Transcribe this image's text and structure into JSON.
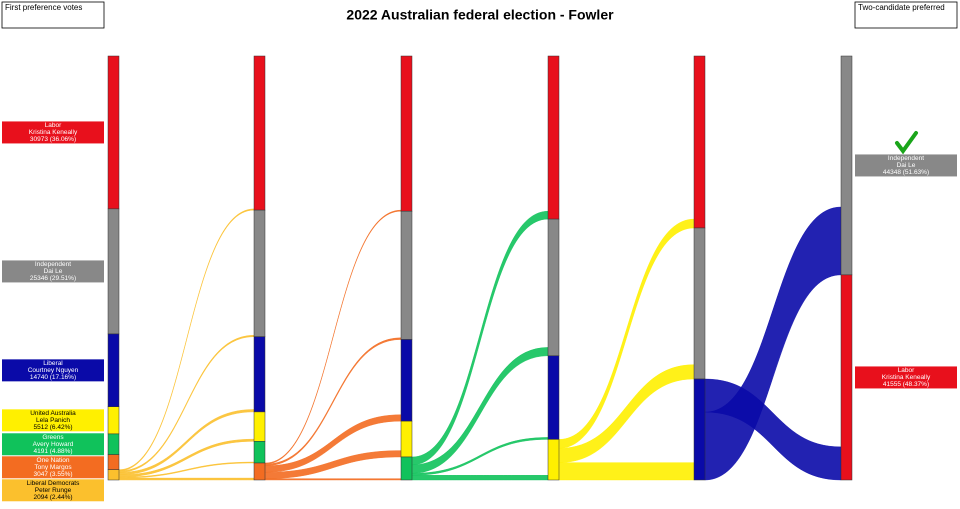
{
  "chart_data": {
    "type": "sankey",
    "title": "2022 Australian federal election - Fowler",
    "left_heading": "First preference votes",
    "right_heading": "Two-candidate preferred",
    "candidates": [
      {
        "party": "Labor",
        "name": "Kristina Keneally",
        "color": "#e8101c",
        "value": 30973,
        "value_label": "30973 (36.06%)"
      },
      {
        "party": "Independent",
        "name": "Dai Le",
        "color": "#888888",
        "value": 25346,
        "value_label": "25346 (29.51%)"
      },
      {
        "party": "Liberal",
        "name": "Courtney Nguyen",
        "color": "#0a0aa8",
        "value": 14740,
        "value_label": "14740 (17.16%)"
      },
      {
        "party": "United Australia",
        "name": "Lela Panich",
        "color": "#fff000",
        "value": 5512,
        "value_label": "5512 (6.42%)"
      },
      {
        "party": "Greens",
        "name": "Avery Howard",
        "color": "#10c25b",
        "value": 4191,
        "value_label": "4191 (4.88%)"
      },
      {
        "party": "One Nation",
        "name": "Tony Margos",
        "color": "#f36c21",
        "value": 3047,
        "value_label": "3047 (3.55%)"
      },
      {
        "party": "Liberal Democrats",
        "name": "Peter Runge",
        "color": "#fbc02d",
        "value": 2094,
        "value_label": "2094 (2.44%)"
      }
    ],
    "counts": [
      [
        31223,
        25646,
        15240,
        5962,
        4391,
        3441,
        null
      ],
      [
        31443,
        25996,
        16540,
        7262,
        4662,
        null,
        null
      ],
      [
        33043,
        27696,
        16940,
        8224,
        null,
        null,
        null
      ],
      [
        34843,
        30596,
        20464,
        null,
        null,
        null,
        null
      ]
    ],
    "transfers": [
      [
        250,
        300,
        500,
        450,
        200,
        394,
        null
      ],
      [
        220,
        350,
        1300,
        1300,
        271,
        null,
        null
      ],
      [
        1600,
        1700,
        400,
        962,
        null,
        null,
        null
      ],
      [
        1800,
        2900,
        3524,
        null,
        null,
        null,
        null
      ],
      [
        6712,
        13752,
        null,
        null,
        null,
        null,
        null
      ]
    ],
    "final": [
      {
        "party": "Independent",
        "name": "Dai Le",
        "color": "#888888",
        "value": 44348,
        "value_label": "44348 (51.63%)"
      },
      {
        "party": "Labor",
        "name": "Kristina Keneally",
        "color": "#e8101c",
        "value": 41555,
        "value_label": "41555 (48.37%)"
      }
    ]
  }
}
